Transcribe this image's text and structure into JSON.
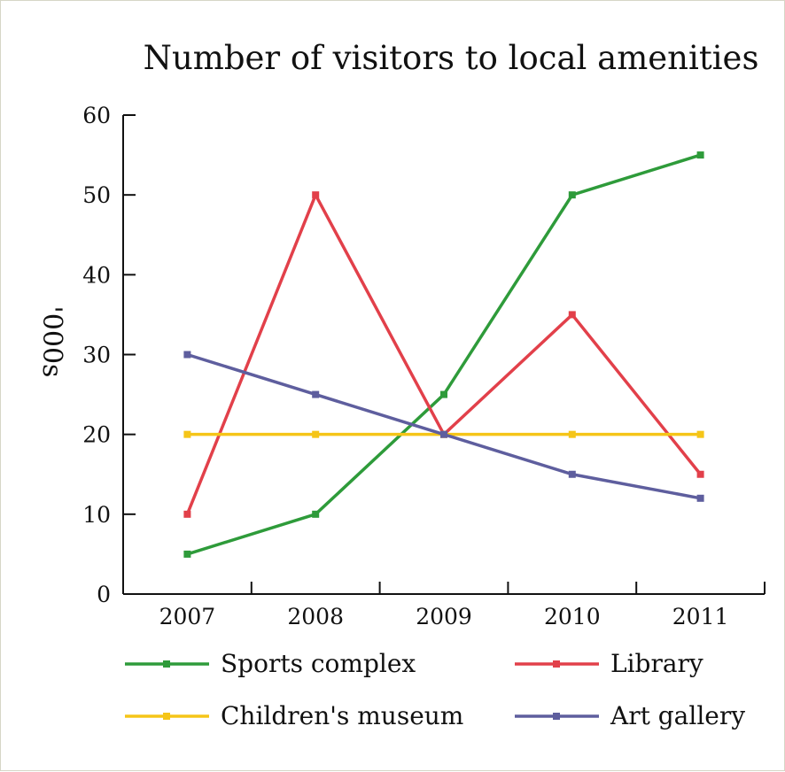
{
  "chart_data": {
    "type": "line",
    "title": "Number of visitors to local amenities",
    "xlabel": "",
    "ylabel": "'000s",
    "categories": [
      "2007",
      "2008",
      "2009",
      "2010",
      "2011"
    ],
    "ylim": [
      0,
      60
    ],
    "yticks": [
      "0",
      "10",
      "20",
      "30",
      "40",
      "50",
      "60"
    ],
    "grid": false,
    "legend_position": "bottom",
    "series": [
      {
        "name": "Sports complex",
        "color": "#2e9b3a",
        "values": [
          5,
          10,
          25,
          50,
          55
        ]
      },
      {
        "name": "Library",
        "color": "#e2404a",
        "values": [
          10,
          50,
          20,
          35,
          15
        ]
      },
      {
        "name": "Children's museum",
        "color": "#f5c518",
        "values": [
          20,
          20,
          20,
          20,
          20
        ]
      },
      {
        "name": "Art gallery",
        "color": "#5e5e9e",
        "values": [
          30,
          25,
          20,
          15,
          12
        ]
      }
    ]
  }
}
